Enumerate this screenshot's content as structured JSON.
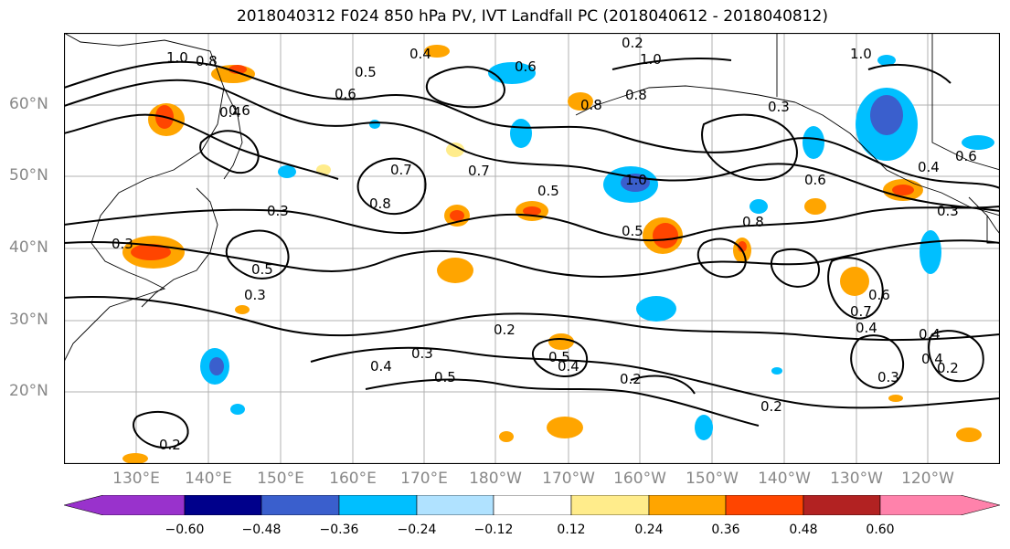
{
  "title": "2018040312 F024 850 hPa PV, IVT Landfall PC (2018040612 - 2018040812)",
  "lat_labels": [
    "60°N",
    "50°N",
    "40°N",
    "30°N",
    "20°N"
  ],
  "lon_labels": [
    "130°E",
    "140°E",
    "150°E",
    "160°E",
    "170°E",
    "180°W",
    "170°W",
    "160°W",
    "150°W",
    "140°W",
    "130°W",
    "120°W"
  ],
  "contour_labels": [
    "1.0",
    "0.8",
    "0.5",
    "0.4",
    "0.2",
    "0.6",
    "1.0",
    "0.8",
    "0.8",
    "0.6",
    "0.3",
    "1.0",
    "0.6",
    "0.4",
    "0.7",
    "0.8",
    "0.7",
    "0.5",
    "1.0",
    "0.6",
    "0.8",
    "0.3",
    "0.3",
    "0.5",
    "0.3",
    "0.5",
    "0.7",
    "0.4",
    "0.6",
    "0.4",
    "0.3",
    "0.6",
    "0.3",
    "0.4",
    "0.3",
    "0.5",
    "0.2",
    "0.5",
    "0.4",
    "0.4",
    "0.2",
    "0.2",
    "0.2",
    "0.2",
    "0.4"
  ],
  "colorbar": {
    "colors": [
      "#9932cc",
      "#00008b",
      "#3a5fcd",
      "#00bfff",
      "#b0e2ff",
      "#ffffff",
      "#ffec8b",
      "#ffa500",
      "#ff4500",
      "#b22222",
      "#ff82ab"
    ],
    "tick_labels": [
      "−0.60",
      "−0.48",
      "−0.36",
      "−0.24",
      "−0.12",
      "0.12",
      "0.24",
      "0.36",
      "0.48",
      "0.60"
    ]
  },
  "icons": [
    "map-canvas",
    "colorbar"
  ]
}
